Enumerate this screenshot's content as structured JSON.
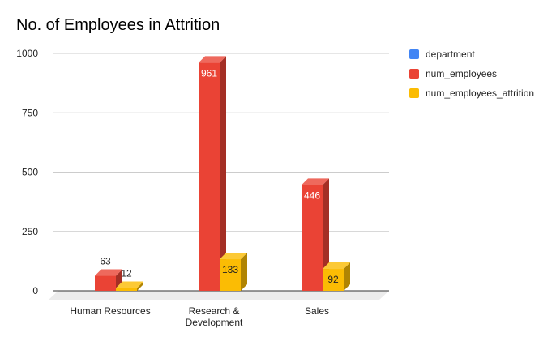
{
  "chart_data": {
    "type": "bar",
    "title": "No. of Employees in Attrition",
    "categories": [
      [
        "Human Resources"
      ],
      [
        "Research &",
        "Development"
      ],
      [
        "Sales"
      ]
    ],
    "series": [
      {
        "name": "department",
        "color": "#4285f4",
        "values": [
          null,
          null,
          null
        ]
      },
      {
        "name": "num_employees",
        "color": "#ea4335",
        "values": [
          63,
          961,
          446
        ]
      },
      {
        "name": "num_employees_attrition",
        "color": "#fbbc04",
        "values": [
          12,
          133,
          92
        ]
      }
    ],
    "yticks": [
      "0",
      "250",
      "500",
      "750",
      "1000"
    ],
    "ylim": [
      0,
      1000
    ],
    "grid": true,
    "legend_position": "right",
    "bar_style": "3d"
  }
}
